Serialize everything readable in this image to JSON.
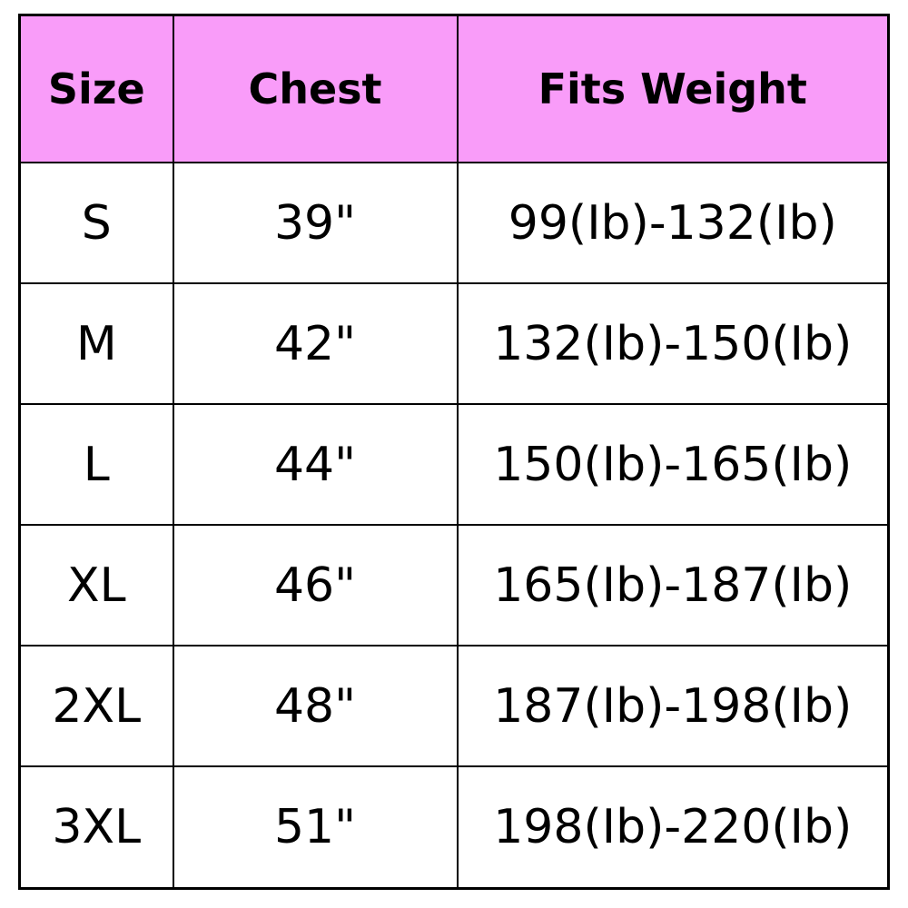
{
  "table": {
    "header": [
      "Size",
      "Chest",
      "Fits Weight"
    ],
    "rows": [
      [
        "S",
        "39\"",
        "99(Ib)-132(Ib)"
      ],
      [
        "M",
        "42\"",
        "132(Ib)-150(Ib)"
      ],
      [
        "L",
        "44\"",
        "150(Ib)-165(Ib)"
      ],
      [
        "XL",
        "46\"",
        "165(Ib)-187(Ib)"
      ],
      [
        "2XL",
        "48\"",
        "187(Ib)-198(Ib)"
      ],
      [
        "3XL",
        "51\"",
        "198(Ib)-220(Ib)"
      ]
    ]
  }
}
